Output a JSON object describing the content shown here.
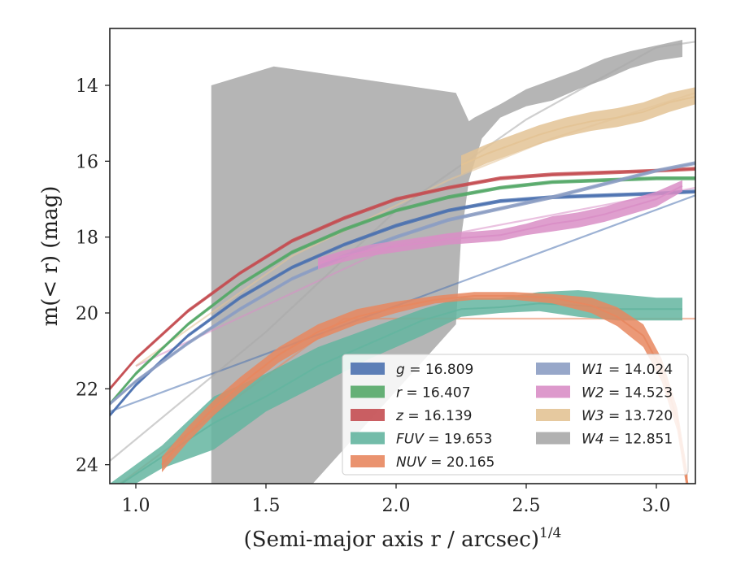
{
  "chart_data": {
    "type": "line",
    "xlabel": "(Semi-major axis r / arcsec)",
    "xlabel_exp": "1/4",
    "ylabel": "m(< r) (mag)",
    "xlim": [
      0.9,
      3.15
    ],
    "ylim": [
      24.5,
      12.5
    ],
    "y_inverted": true,
    "xticks": [
      "1.0",
      "1.5",
      "2.0",
      "2.5",
      "3.0"
    ],
    "yticks": [
      "14",
      "16",
      "18",
      "20",
      "22",
      "24"
    ],
    "xtick_values": [
      1.0,
      1.5,
      2.0,
      2.5,
      3.0
    ],
    "ytick_values": [
      14,
      16,
      18,
      20,
      22,
      24
    ],
    "legend_position": "lower-right",
    "legend_columns": 2,
    "series": [
      {
        "name": "g",
        "legend_value": "16.809",
        "color": "#4c72b0",
        "x": [
          0.9,
          1.0,
          1.2,
          1.4,
          1.6,
          1.8,
          2.0,
          2.2,
          2.4,
          2.6,
          2.8,
          3.0,
          3.15
        ],
        "y": [
          22.7,
          21.9,
          20.6,
          19.6,
          18.8,
          18.2,
          17.7,
          17.3,
          17.05,
          16.95,
          16.9,
          16.85,
          16.8
        ],
        "y_lo": [
          22.75,
          21.95,
          20.65,
          19.65,
          18.85,
          18.25,
          17.75,
          17.35,
          17.1,
          17.0,
          16.95,
          16.9,
          16.85
        ],
        "y_hi": [
          22.65,
          21.85,
          20.55,
          19.55,
          18.75,
          18.15,
          17.65,
          17.25,
          17.0,
          16.9,
          16.85,
          16.8,
          16.75
        ],
        "fit": [
          0.9,
          22.6,
          3.15,
          16.9
        ]
      },
      {
        "name": "r",
        "legend_value": "16.407",
        "color": "#55a868",
        "x": [
          0.9,
          1.0,
          1.2,
          1.4,
          1.6,
          1.8,
          2.0,
          2.2,
          2.4,
          2.6,
          2.8,
          3.0,
          3.15
        ],
        "y": [
          22.4,
          21.6,
          20.3,
          19.25,
          18.4,
          17.8,
          17.3,
          16.95,
          16.7,
          16.55,
          16.5,
          16.45,
          16.45
        ],
        "y_lo": [
          22.45,
          21.65,
          20.35,
          19.3,
          18.45,
          17.85,
          17.35,
          17.0,
          16.75,
          16.6,
          16.55,
          16.5,
          16.5
        ],
        "y_hi": [
          22.35,
          21.55,
          20.25,
          19.2,
          18.35,
          17.75,
          17.25,
          16.9,
          16.65,
          16.5,
          16.45,
          16.4,
          16.4
        ]
      },
      {
        "name": "z",
        "legend_value": "16.139",
        "color": "#c44e52",
        "x": [
          0.9,
          1.0,
          1.2,
          1.4,
          1.6,
          1.8,
          2.0,
          2.2,
          2.4,
          2.6,
          2.8,
          3.0,
          3.15
        ],
        "y": [
          22.0,
          21.2,
          19.95,
          18.95,
          18.1,
          17.5,
          17.0,
          16.7,
          16.45,
          16.35,
          16.3,
          16.25,
          16.2
        ],
        "y_lo": [
          22.05,
          21.25,
          20.0,
          19.0,
          18.15,
          17.55,
          17.05,
          16.75,
          16.5,
          16.4,
          16.35,
          16.3,
          16.25
        ],
        "y_hi": [
          21.95,
          21.15,
          19.9,
          18.9,
          18.05,
          17.45,
          16.95,
          16.65,
          16.4,
          16.3,
          16.25,
          16.2,
          16.15
        ]
      },
      {
        "name": "FUV",
        "legend_value": "19.653",
        "color": "#64b5a0",
        "x": [
          0.9,
          1.1,
          1.3,
          1.5,
          1.7,
          1.9,
          2.1,
          2.25,
          2.4,
          2.55,
          2.7,
          2.85,
          3.0,
          3.1
        ],
        "y": [
          24.7,
          23.8,
          22.9,
          22.2,
          21.4,
          20.8,
          20.2,
          19.9,
          19.85,
          19.75,
          19.8,
          19.9,
          19.9,
          19.9
        ],
        "y_lo": [
          24.9,
          24.1,
          23.6,
          22.6,
          21.9,
          21.2,
          20.6,
          20.1,
          20.0,
          19.95,
          20.1,
          20.2,
          20.2,
          20.2
        ],
        "y_hi": [
          24.5,
          23.5,
          22.2,
          21.6,
          20.9,
          20.4,
          19.9,
          19.6,
          19.6,
          19.45,
          19.4,
          19.5,
          19.6,
          19.6
        ]
      },
      {
        "name": "NUV",
        "legend_value": "20.165",
        "color": "#e8875f",
        "x": [
          1.1,
          1.2,
          1.3,
          1.4,
          1.55,
          1.7,
          1.85,
          2.0,
          2.15,
          2.3,
          2.45,
          2.6,
          2.75,
          2.85,
          2.95,
          3.02,
          3.08,
          3.12
        ],
        "y": [
          24.0,
          23.2,
          22.5,
          21.9,
          21.1,
          20.5,
          20.1,
          19.85,
          19.65,
          19.55,
          19.55,
          19.6,
          19.8,
          20.1,
          20.6,
          21.5,
          22.8,
          24.5
        ],
        "y_lo": [
          24.2,
          23.4,
          22.7,
          22.1,
          21.3,
          20.7,
          20.3,
          20.0,
          19.75,
          19.65,
          19.65,
          19.75,
          20.0,
          20.35,
          20.9,
          21.8,
          23.1,
          24.8
        ],
        "y_hi": [
          23.8,
          23.0,
          22.3,
          21.7,
          20.9,
          20.3,
          19.9,
          19.7,
          19.55,
          19.45,
          19.45,
          19.5,
          19.6,
          19.85,
          20.3,
          21.2,
          22.5,
          24.2
        ],
        "fit": [
          0.9,
          24.7,
          1.8,
          20.15,
          3.15,
          20.15
        ]
      },
      {
        "name": "W1",
        "legend_value": "14.024",
        "color": "#8c9dc3",
        "x": [
          0.9,
          1.0,
          1.2,
          1.4,
          1.6,
          1.8,
          2.0,
          2.2,
          2.4,
          2.6,
          2.8,
          3.0,
          3.15
        ],
        "y": [
          22.4,
          21.8,
          20.8,
          19.9,
          19.1,
          18.5,
          18.0,
          17.55,
          17.25,
          16.95,
          16.6,
          16.25,
          16.05
        ],
        "y_lo": [
          22.45,
          21.85,
          20.85,
          19.95,
          19.15,
          18.55,
          18.05,
          17.6,
          17.3,
          17.0,
          16.65,
          16.3,
          16.1
        ],
        "y_hi": [
          22.35,
          21.75,
          20.75,
          19.85,
          19.05,
          18.45,
          17.95,
          17.5,
          17.2,
          16.9,
          16.55,
          16.2,
          16.0
        ]
      },
      {
        "name": "W2",
        "legend_value": "14.523",
        "color": "#d98ec6",
        "x": [
          1.7,
          1.8,
          1.9,
          2.0,
          2.1,
          2.2,
          2.3,
          2.4,
          2.5,
          2.6,
          2.7,
          2.8,
          2.9,
          3.0,
          3.1
        ],
        "y": [
          18.7,
          18.5,
          18.35,
          18.25,
          18.15,
          18.05,
          18.0,
          17.95,
          17.8,
          17.65,
          17.55,
          17.4,
          17.2,
          17.0,
          16.65
        ],
        "y_lo": [
          18.85,
          18.65,
          18.5,
          18.4,
          18.3,
          18.2,
          18.15,
          18.1,
          17.95,
          17.85,
          17.75,
          17.6,
          17.4,
          17.2,
          16.8
        ],
        "y_hi": [
          18.55,
          18.35,
          18.2,
          18.1,
          18.0,
          17.9,
          17.85,
          17.8,
          17.65,
          17.45,
          17.35,
          17.2,
          17.0,
          16.8,
          16.5
        ],
        "fit": [
          1.0,
          21.4,
          2.0,
          18.2,
          3.15,
          16.7
        ]
      },
      {
        "name": "W3",
        "legend_value": "13.720",
        "color": "#e3c395",
        "x": [
          2.25,
          2.35,
          2.45,
          2.55,
          2.65,
          2.75,
          2.85,
          2.95,
          3.05,
          3.15
        ],
        "y": [
          16.1,
          15.8,
          15.55,
          15.3,
          15.1,
          14.95,
          14.85,
          14.7,
          14.45,
          14.3
        ],
        "y_lo": [
          16.35,
          16.05,
          15.8,
          15.55,
          15.35,
          15.2,
          15.1,
          14.95,
          14.7,
          14.5
        ],
        "y_hi": [
          15.85,
          15.55,
          15.3,
          15.05,
          14.85,
          14.7,
          14.6,
          14.45,
          14.2,
          14.05
        ],
        "fit": [
          1.0,
          21.4,
          1.6,
          18.5,
          2.2,
          16.5,
          2.6,
          15.4,
          3.15,
          14.2
        ]
      },
      {
        "name": "W4",
        "legend_value": "12.851",
        "color": "#a8a8a8",
        "band_x": [
          1.29,
          1.29,
          1.53,
          2.23,
          2.28,
          2.3,
          2.4,
          2.5,
          2.6,
          2.7,
          2.8,
          2.9,
          3.0,
          3.1,
          3.1,
          3.0,
          2.9,
          2.8,
          2.7,
          2.6,
          2.5,
          2.4,
          2.33,
          2.28,
          2.25,
          2.23,
          1.68,
          1.29
        ],
        "band_y": [
          24.5,
          14.0,
          13.5,
          14.2,
          14.95,
          14.85,
          14.5,
          14.1,
          13.85,
          13.6,
          13.3,
          13.1,
          12.95,
          12.8,
          13.25,
          13.35,
          13.55,
          13.85,
          14.1,
          14.4,
          14.55,
          14.85,
          15.4,
          16.5,
          18.0,
          20.3,
          24.5,
          24.5
        ],
        "fit": [
          0.9,
          23.9,
          1.5,
          20.5,
          2.0,
          17.3,
          2.5,
          14.9,
          3.0,
          13.0,
          3.15,
          12.85
        ]
      }
    ]
  }
}
